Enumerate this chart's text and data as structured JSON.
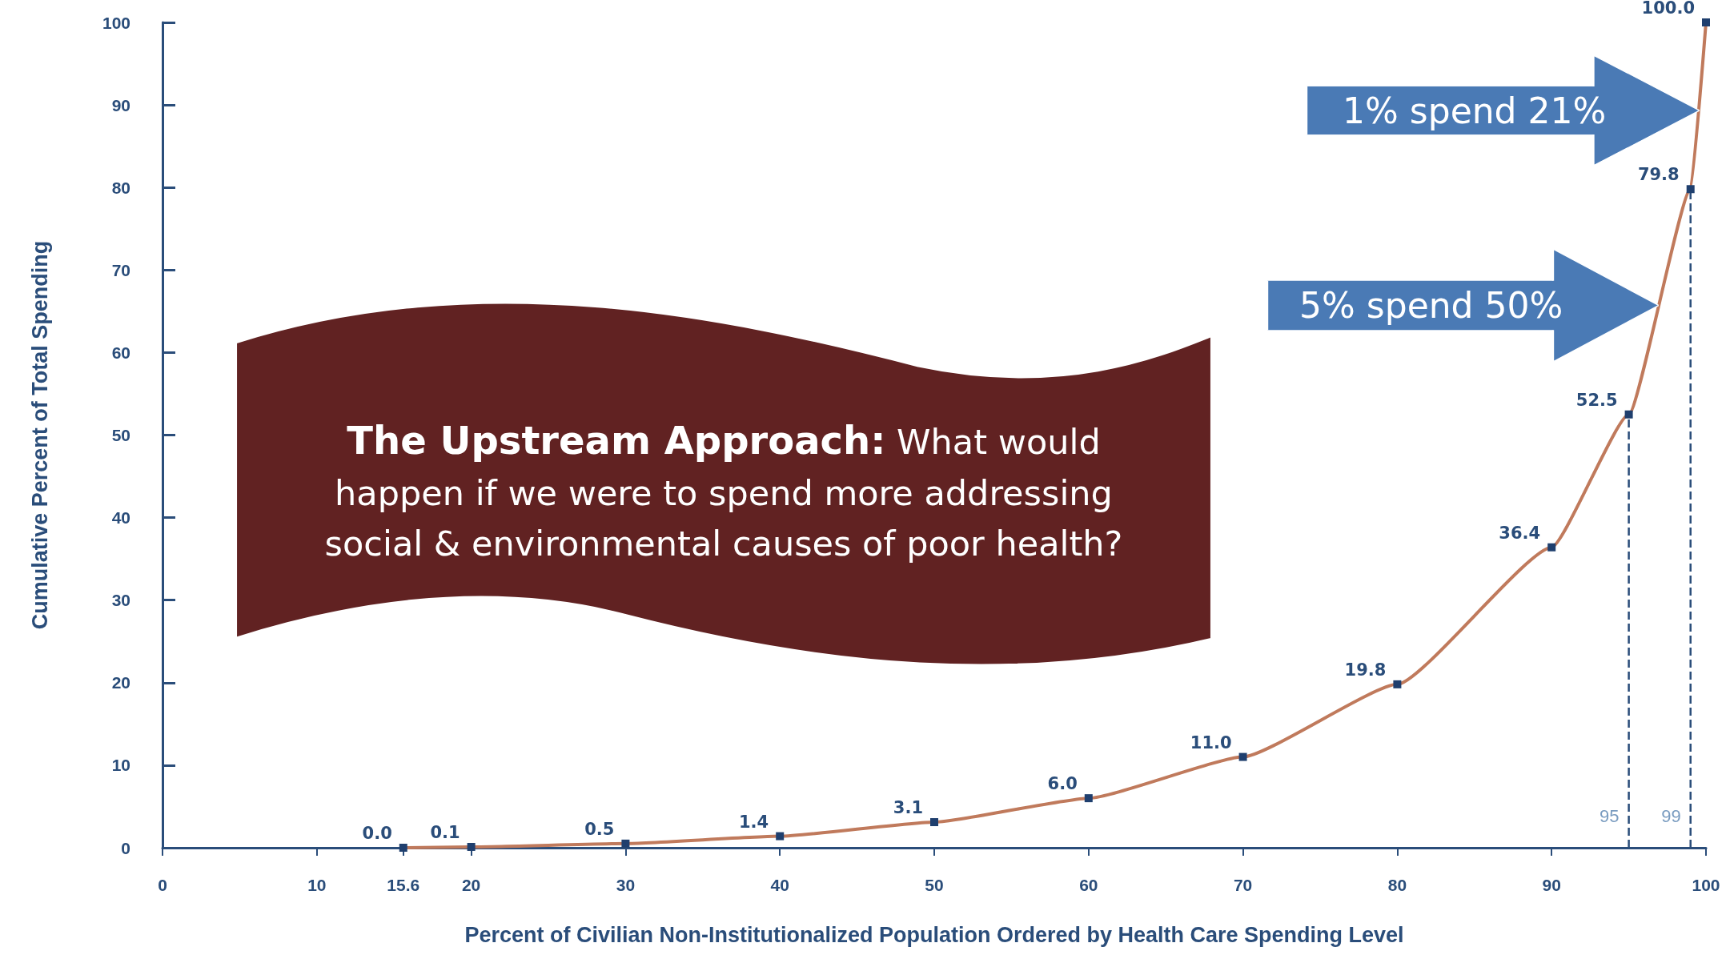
{
  "chart_data": {
    "type": "line",
    "xlabel": "Percent of Civilian Non-Institutionalized Population Ordered by Health Care Spending Level",
    "ylabel": "Cumulative Percent of Total Spending",
    "x": [
      15.6,
      20,
      30,
      40,
      50,
      60,
      70,
      80,
      90,
      95,
      99,
      100
    ],
    "series": [
      {
        "color": "#c07a5c",
        "marker": "square",
        "values": [
          0,
          0.1,
          0.5,
          1.4,
          3.1,
          6.0,
          11.0,
          19.8,
          36.4,
          52.5,
          79.8,
          100.0
        ],
        "value_labels": [
          "0.0",
          "0.1",
          "0.5",
          "1.4",
          "3.1",
          "6.0",
          "11.0",
          "19.8",
          "36.4",
          "52.5",
          "79.8",
          "100.0"
        ]
      }
    ],
    "xlim": [
      0,
      100
    ],
    "ylim": [
      0,
      100
    ],
    "xticks": [
      0,
      10,
      15.6,
      20,
      30,
      40,
      50,
      60,
      70,
      80,
      90,
      100
    ],
    "yticks": [
      0,
      10,
      20,
      30,
      40,
      50,
      60,
      70,
      80,
      90,
      100
    ],
    "grid": false,
    "ref_lines": [
      {
        "axis": "x",
        "value": 95,
        "label": "95",
        "color": "#2a4d7a",
        "line_style": "dashed"
      },
      {
        "axis": "x",
        "value": 99,
        "label": "99",
        "color": "#2a4d7a",
        "line_style": "dashed"
      }
    ],
    "annotations": [
      "The Upstream Approach:",
      "What would happen if we were to spend more addressing social & environmental causes of poor health?",
      "1% spend 21%",
      "5% spend 50%"
    ]
  }
}
